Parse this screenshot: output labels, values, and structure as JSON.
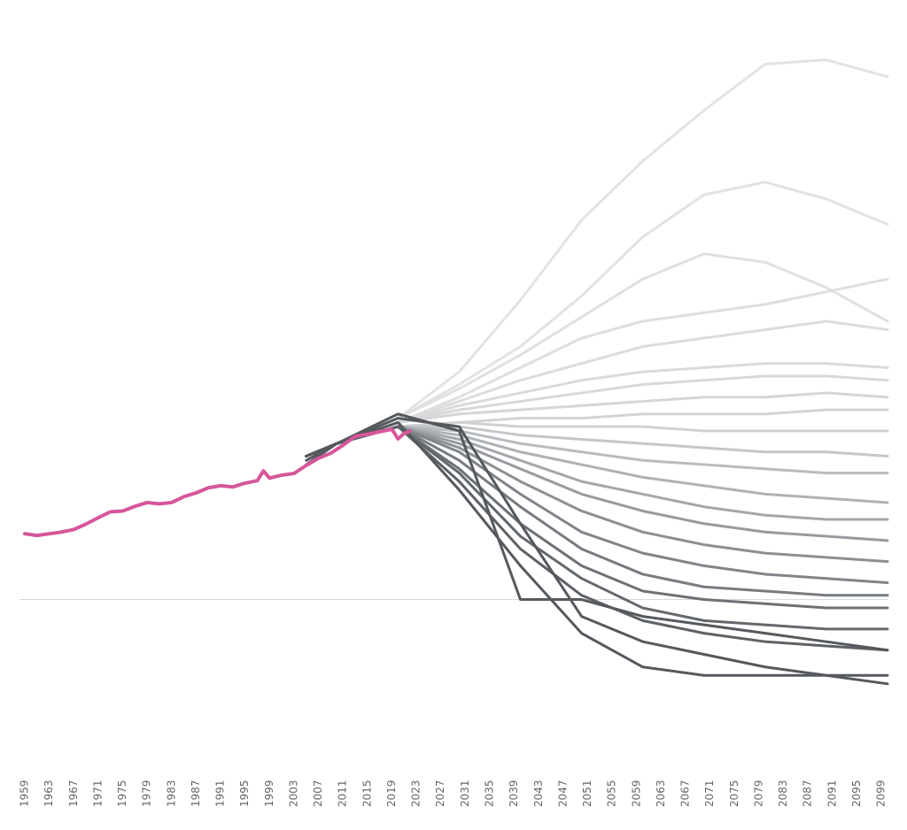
{
  "chart_data": {
    "type": "line",
    "xlim": [
      1959,
      2100
    ],
    "ylim": [
      -32,
      138
    ],
    "xticks": [
      1959,
      1963,
      1967,
      1971,
      1975,
      1979,
      1983,
      1987,
      1991,
      1995,
      1999,
      2003,
      2007,
      2011,
      2015,
      2019,
      2023,
      2027,
      2031,
      2035,
      2039,
      2043,
      2047,
      2051,
      2055,
      2059,
      2063,
      2067,
      2071,
      2075,
      2079,
      2083,
      2087,
      2091,
      2095,
      2099
    ],
    "hline": 0,
    "x": [
      2005,
      2010,
      2020,
      2030,
      2040,
      2050,
      2060,
      2070,
      2080,
      2090,
      2100
    ],
    "series": [
      {
        "color": "#e3e3e3",
        "values": [
          34,
          37,
          43,
          54,
          71,
          90,
          104,
          116,
          127,
          128,
          124
        ]
      },
      {
        "color": "#e2e2e2",
        "values": [
          34,
          37,
          43,
          51,
          60,
          72,
          86,
          96,
          99,
          95,
          89
        ]
      },
      {
        "color": "#e0e0e0",
        "values": [
          34,
          37,
          43,
          50,
          58,
          67,
          76,
          82,
          80,
          74,
          66
        ]
      },
      {
        "color": "#dedede",
        "values": [
          34,
          37,
          42,
          48,
          55,
          62,
          66,
          68,
          70,
          73,
          76
        ]
      },
      {
        "color": "#dcdcdc",
        "values": [
          34,
          37,
          42,
          47,
          52,
          56,
          60,
          62,
          64,
          66,
          64
        ]
      },
      {
        "color": "#dadada",
        "values": [
          34,
          37,
          42,
          46,
          49,
          52,
          54,
          55,
          56,
          56,
          55
        ]
      },
      {
        "color": "#d8d8d8",
        "values": [
          34,
          37,
          42,
          45,
          47,
          49,
          51,
          52,
          53,
          53,
          52
        ]
      },
      {
        "color": "#d5d6d7",
        "values": [
          34,
          37,
          42,
          44,
          45,
          46,
          47,
          48,
          48,
          49,
          48
        ]
      },
      {
        "color": "#d2d4d5",
        "values": [
          34,
          37,
          41,
          42,
          43,
          43,
          44,
          44,
          44,
          45,
          45
        ]
      },
      {
        "color": "#cfd1d3",
        "values": [
          34,
          37,
          41,
          42,
          41,
          41,
          41,
          40,
          40,
          40,
          40
        ]
      },
      {
        "color": "#c4c7ca",
        "values": [
          34,
          37,
          41,
          41,
          39,
          38,
          37,
          36,
          35,
          35,
          34
        ]
      },
      {
        "color": "#b8bcc0",
        "values": [
          34,
          37,
          41,
          40,
          37,
          35,
          33,
          32,
          31,
          30,
          30
        ]
      },
      {
        "color": "#aeb2b6",
        "values": [
          34,
          37,
          41,
          39,
          35,
          32,
          29,
          27,
          25,
          24,
          23
        ]
      },
      {
        "color": "#a3a7ab",
        "values": [
          34,
          37,
          41,
          38,
          33,
          28,
          25,
          22,
          20,
          19,
          19
        ]
      },
      {
        "color": "#979ba0",
        "values": [
          34,
          37,
          41,
          37,
          31,
          25,
          21,
          18,
          16,
          15,
          14
        ]
      },
      {
        "color": "#8b9094",
        "values": [
          34,
          37,
          41,
          36,
          28,
          21,
          16,
          13,
          11,
          10,
          9
        ]
      },
      {
        "color": "#80858a",
        "values": [
          34,
          37,
          41,
          35,
          25,
          16,
          11,
          8,
          6,
          5,
          4
        ]
      },
      {
        "color": "#767b80",
        "values": [
          34,
          37,
          41,
          33,
          22,
          12,
          6,
          3,
          2,
          1,
          1
        ]
      },
      {
        "color": "#6c7176",
        "values": [
          34,
          37,
          41,
          31,
          18,
          8,
          2,
          0,
          -1,
          -2,
          -2
        ]
      },
      {
        "color": "#63686d",
        "values": [
          34,
          37,
          41,
          30,
          15,
          5,
          -2,
          -5,
          -6,
          -7,
          -7
        ]
      },
      {
        "color": "#5d6166",
        "values": [
          34,
          37,
          41,
          28,
          12,
          1,
          -5,
          -8,
          -10,
          -11,
          -12
        ]
      },
      {
        "color": "#55595e",
        "values": [
          32,
          37,
          43,
          41,
          18,
          -4,
          -10,
          -13,
          -16,
          -18,
          -20
        ]
      },
      {
        "color": "#55595e",
        "values": [
          34,
          37,
          42,
          26,
          8,
          -8,
          -16,
          -18,
          -18,
          -18,
          -18
        ]
      },
      {
        "color": "#55595e",
        "values": [
          33,
          37,
          44,
          40,
          0,
          0,
          -4,
          -6,
          -8,
          -10,
          -12
        ]
      },
      {
        "color": "#d6569a",
        "x": [
          1959,
          1961,
          1963,
          1965,
          1967,
          1969,
          1971,
          1973,
          1975,
          1977,
          1979,
          1981,
          1983,
          1985,
          1987,
          1989,
          1991,
          1993,
          1995,
          1997,
          1998,
          1999,
          2001,
          2003,
          2005,
          2007,
          2009,
          2011,
          2013,
          2015,
          2017,
          2019,
          2020,
          2021,
          2022
        ],
        "values": [
          15.6,
          15.2,
          15.6,
          16,
          16.6,
          17.9,
          19.4,
          20.8,
          21,
          22.1,
          23,
          22.7,
          23,
          24.4,
          25.3,
          26.5,
          27,
          26.7,
          27.6,
          28.2,
          30.5,
          28.8,
          29.5,
          29.9,
          31.8,
          33.5,
          34.7,
          36.6,
          38.7,
          39.2,
          39.8,
          40.4,
          38.1,
          39.4,
          40
        ]
      }
    ]
  }
}
